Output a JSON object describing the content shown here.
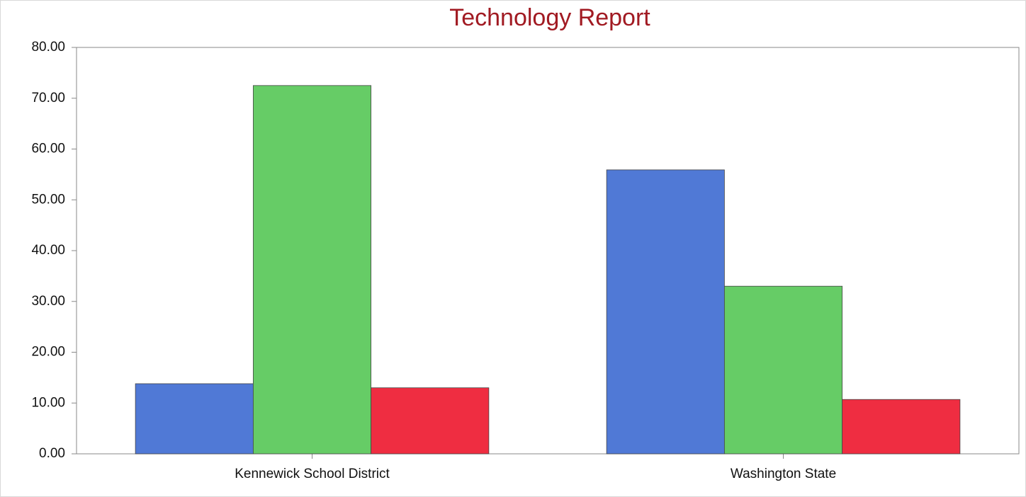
{
  "chart_data": {
    "type": "bar",
    "title": "Technology Report",
    "categories": [
      "Kennewick School District",
      "Washington State"
    ],
    "series": [
      {
        "color": "#5079d6",
        "values": [
          13.8,
          55.9
        ]
      },
      {
        "color": "#66cc66",
        "values": [
          72.5,
          33.0
        ]
      },
      {
        "color": "#ef2d41",
        "values": [
          13.0,
          10.7
        ]
      }
    ],
    "ylim": [
      0,
      80
    ],
    "yticks": [
      {
        "value": 0,
        "label": "0.00"
      },
      {
        "value": 10,
        "label": "10.00"
      },
      {
        "value": 20,
        "label": "20.00"
      },
      {
        "value": 30,
        "label": "30.00"
      },
      {
        "value": 40,
        "label": "40.00"
      },
      {
        "value": 50,
        "label": "50.00"
      },
      {
        "value": 60,
        "label": "60.00"
      },
      {
        "value": 70,
        "label": "70.00"
      },
      {
        "value": 80,
        "label": "80.00"
      }
    ],
    "grid": false
  }
}
